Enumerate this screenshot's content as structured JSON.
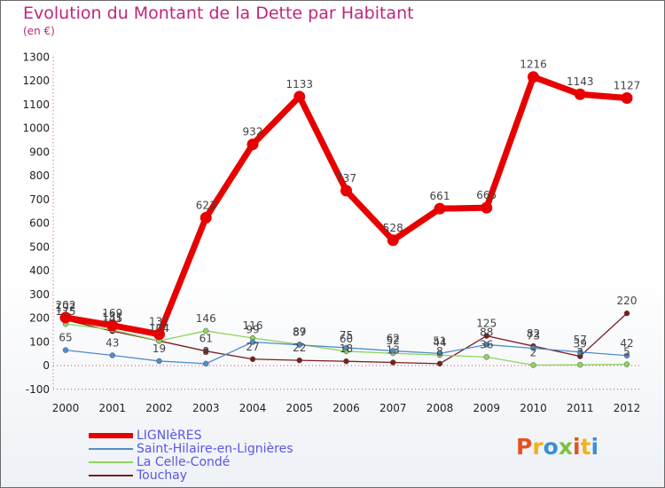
{
  "header": {
    "title": "Evolution du Montant de la Dette par Habitant",
    "subtitle": "(en €)"
  },
  "logo": {
    "text": "Proxiti",
    "colors": [
      "#e8501f",
      "#f2b21c",
      "#3d8ed9",
      "#7cc242",
      "#e8501f",
      "#f2b21c",
      "#3d8ed9"
    ]
  },
  "chart_data": {
    "type": "line",
    "x": [
      "2000",
      "2001",
      "2002",
      "2003",
      "2004",
      "2005",
      "2006",
      "2007",
      "2008",
      "2009",
      "2010",
      "2011",
      "2012"
    ],
    "ylim": [
      -100,
      1300
    ],
    "yticks": [
      -100,
      0,
      100,
      200,
      300,
      400,
      500,
      600,
      700,
      800,
      900,
      1000,
      1100,
      1200,
      1300
    ],
    "grid": false,
    "legend": "bottom-left",
    "series": [
      {
        "name": "LIGNIèRES",
        "color": "#e80000",
        "values": [
          202,
          169,
          132,
          623,
          932,
          1133,
          737,
          528,
          661,
          665,
          1216,
          1143,
          1127
        ]
      },
      {
        "name": "Saint-Hilaire-en-Lignières",
        "color": "#4f8dc9",
        "values": [
          65,
          43,
          19,
          8,
          99,
          87,
          75,
          62,
          51,
          88,
          73,
          57,
          42
        ]
      },
      {
        "name": "La Celle-Condé",
        "color": "#8fd35e",
        "values": [
          175,
          151,
          104,
          146,
          116,
          89,
          60,
          52,
          44,
          36,
          2,
          3,
          5
        ]
      },
      {
        "name": "Touchay",
        "color": "#7a1e1e",
        "values": [
          192,
          145,
          104,
          61,
          27,
          22,
          18,
          13,
          8,
          125,
          82,
          39,
          220
        ]
      }
    ]
  }
}
